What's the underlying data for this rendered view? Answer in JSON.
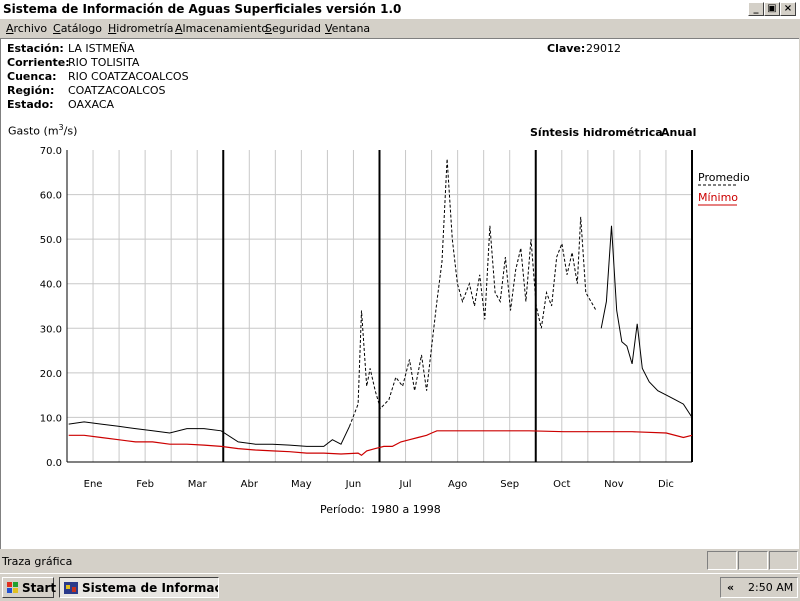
{
  "window": {
    "title": "Sistema de Información de Aguas Superficiales  versión 1.0"
  },
  "menu": [
    {
      "prefix": "",
      "u": "A",
      "rest": "rchivo"
    },
    {
      "prefix": "",
      "u": "C",
      "rest": "atálogo"
    },
    {
      "prefix": "",
      "u": "H",
      "rest": "idrometría"
    },
    {
      "prefix": "",
      "u": "A",
      "rest": "lmacenamiento"
    },
    {
      "prefix": "",
      "u": "S",
      "rest": "eguridad"
    },
    {
      "prefix": "",
      "u": "V",
      "rest": "entana"
    }
  ],
  "station": {
    "estacion_label": "Estación:",
    "estacion": "LA ISTMEÑA",
    "corriente_label": "Corriente:",
    "corriente": "RIO TOLISITA",
    "cuenca_label": "Cuenca:",
    "cuenca": "RIO COATZACOALCOS",
    "region_label": "Región:",
    "region": "COATZACOALCOS",
    "estado_label": "Estado:",
    "estado": "OAXACA",
    "clave_label": "Clave:",
    "clave": "29012"
  },
  "header": {
    "synthesis": "Síntesis hidrométrica",
    "mode": "Anual"
  },
  "chart_data": {
    "type": "line",
    "ylabel": "Gasto (m3/s)",
    "ylabel_base": "Gasto (m",
    "ylabel_sup": "3",
    "ylabel_tail": "/s)",
    "ylim": [
      0,
      70
    ],
    "yticks": [
      "0.0",
      "10.0",
      "20.0",
      "30.0",
      "40.0",
      "50.0",
      "60.0",
      "70.0"
    ],
    "categories": [
      "Ene",
      "Feb",
      "Mar",
      "Abr",
      "May",
      "Jun",
      "Jul",
      "Ago",
      "Sep",
      "Oct",
      "Nov",
      "Dic"
    ],
    "grid": true,
    "legend": "right",
    "series": [
      {
        "name": "Promedio",
        "color": "#000000",
        "dash": "dashed during Jun-Sep",
        "points": [
          [
            1,
            8.5
          ],
          [
            10,
            9.0
          ],
          [
            20,
            8.5
          ],
          [
            30,
            8.0
          ],
          [
            40,
            7.5
          ],
          [
            50,
            7.0
          ],
          [
            60,
            6.5
          ],
          [
            70,
            7.5
          ],
          [
            80,
            7.5
          ],
          [
            90,
            7.0
          ],
          [
            100,
            4.5
          ],
          [
            110,
            4.0
          ],
          [
            120,
            4.0
          ],
          [
            130,
            3.8
          ],
          [
            140,
            3.5
          ],
          [
            150,
            3.5
          ],
          [
            155,
            5.0
          ],
          [
            160,
            4.0
          ],
          [
            165,
            8.0
          ],
          [
            170,
            13.0
          ],
          [
            172,
            34.0
          ],
          [
            175,
            17.0
          ],
          [
            177,
            21.0
          ],
          [
            180,
            16.0
          ],
          [
            183,
            12.0
          ],
          [
            188,
            14.0
          ],
          [
            192,
            19.0
          ],
          [
            196,
            17.0
          ],
          [
            200,
            23.0
          ],
          [
            203,
            16.0
          ],
          [
            207,
            24.0
          ],
          [
            210,
            16.0
          ],
          [
            213,
            26.0
          ],
          [
            216,
            36.0
          ],
          [
            219,
            45.0
          ],
          [
            222,
            68.0
          ],
          [
            225,
            50.0
          ],
          [
            228,
            40.0
          ],
          [
            231,
            36.0
          ],
          [
            235,
            40.0
          ],
          [
            238,
            35.0
          ],
          [
            241,
            42.0
          ],
          [
            244,
            32.0
          ],
          [
            247,
            53.0
          ],
          [
            250,
            38.0
          ],
          [
            253,
            36.0
          ],
          [
            256,
            46.0
          ],
          [
            259,
            34.0
          ],
          [
            262,
            43.0
          ],
          [
            265,
            48.0
          ],
          [
            268,
            36.0
          ],
          [
            271,
            50.0
          ],
          [
            274,
            35.0
          ],
          [
            277,
            30.0
          ],
          [
            280,
            38.0
          ],
          [
            283,
            35.0
          ],
          [
            286,
            46.0
          ],
          [
            289,
            49.0
          ],
          [
            292,
            42.0
          ],
          [
            295,
            47.0
          ],
          [
            298,
            40.0
          ],
          [
            300,
            55.0
          ],
          [
            303,
            38.0
          ],
          [
            306,
            36.0
          ],
          [
            309,
            34.0
          ],
          [
            312,
            30.0
          ],
          [
            315,
            36.0
          ],
          [
            318,
            53.0
          ],
          [
            321,
            34.0
          ],
          [
            324,
            27.0
          ],
          [
            327,
            26.0
          ],
          [
            330,
            22.0
          ],
          [
            333,
            31.0
          ],
          [
            336,
            21.0
          ],
          [
            340,
            18.0
          ],
          [
            345,
            16.0
          ],
          [
            350,
            15.0
          ],
          [
            355,
            14.0
          ],
          [
            360,
            13.0
          ],
          [
            365,
            10.0
          ]
        ]
      },
      {
        "name": "Mínimo",
        "color": "#cc0000",
        "points": [
          [
            1,
            6.0
          ],
          [
            10,
            6.0
          ],
          [
            20,
            5.5
          ],
          [
            30,
            5.0
          ],
          [
            40,
            4.5
          ],
          [
            50,
            4.5
          ],
          [
            60,
            4.0
          ],
          [
            70,
            4.0
          ],
          [
            80,
            3.8
          ],
          [
            90,
            3.5
          ],
          [
            100,
            3.0
          ],
          [
            110,
            2.7
          ],
          [
            120,
            2.5
          ],
          [
            130,
            2.3
          ],
          [
            140,
            2.0
          ],
          [
            150,
            2.0
          ],
          [
            160,
            1.8
          ],
          [
            170,
            2.0
          ],
          [
            172,
            1.5
          ],
          [
            175,
            2.5
          ],
          [
            180,
            3.0
          ],
          [
            185,
            3.5
          ],
          [
            190,
            3.5
          ],
          [
            195,
            4.5
          ],
          [
            200,
            5.0
          ],
          [
            205,
            5.5
          ],
          [
            210,
            6.0
          ],
          [
            213,
            6.5
          ],
          [
            216,
            7.0
          ],
          [
            220,
            7.0
          ],
          [
            230,
            7.0
          ],
          [
            250,
            7.0
          ],
          [
            270,
            7.0
          ],
          [
            290,
            6.8
          ],
          [
            310,
            6.8
          ],
          [
            330,
            6.8
          ],
          [
            350,
            6.5
          ],
          [
            360,
            5.5
          ],
          [
            365,
            6.0
          ]
        ]
      }
    ]
  },
  "footer": {
    "period_label": "Período:",
    "period": "1980 a 1998"
  },
  "status": {
    "text": "Traza gráfica"
  },
  "taskbar": {
    "start": "Start",
    "task": "Sistema de Informaci...",
    "clock": "2:50 AM",
    "arrows": "«"
  }
}
